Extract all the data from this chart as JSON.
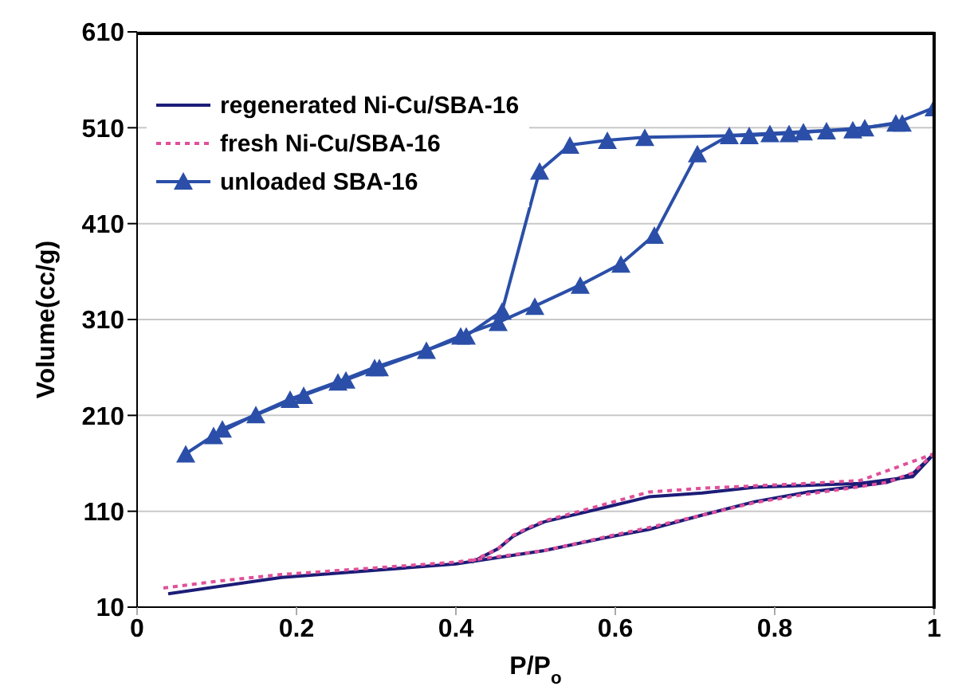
{
  "chart_data": {
    "type": "line",
    "xlabel": "P/P$_{o}$",
    "ylabel": "Volume(cc/g)",
    "xlim": [
      0,
      1
    ],
    "xticks": [
      0,
      0.2,
      0.4,
      0.6,
      0.8,
      1
    ],
    "ylim": [
      10,
      610
    ],
    "yticks": [
      10,
      110,
      210,
      310,
      410,
      510,
      610
    ],
    "grid": "y",
    "legend": "top left",
    "series": [
      {
        "name": "regenerated Ni-Cu/SBA-16",
        "color": "#1c1c78",
        "marker": "none",
        "line_style": "solid",
        "x": [
          0.039,
          0.181,
          0.4,
          0.511,
          0.597,
          0.642,
          0.709,
          0.775,
          0.841,
          0.894,
          0.94,
          0.973,
          1.0
        ],
        "values": [
          24,
          41,
          55,
          69,
          84,
          91,
          106,
          120,
          130,
          135,
          140,
          149,
          170
        ]
      },
      {
        "color": "#1c1c78",
        "marker": "none",
        "line_style": "solid",
        "x": [
          0.42,
          0.453,
          0.472,
          0.491,
          0.511,
          0.577,
          0.642,
          0.709,
          0.775,
          0.907,
          0.973,
          1.0
        ],
        "values": [
          57,
          71,
          84,
          92,
          99,
          112,
          125,
          129,
          135,
          139,
          146,
          170
        ]
      },
      {
        "name": "fresh Ni-Cu/SBA-16",
        "color": "#e0509a",
        "marker": "none",
        "line_style": "dotted",
        "x": [
          0.033,
          0.1,
          0.181,
          0.3,
          0.4,
          0.511,
          0.597,
          0.642,
          0.709,
          0.775,
          0.841,
          0.894,
          0.94,
          0.973,
          1.0
        ],
        "values": [
          30,
          37,
          44,
          51,
          57,
          69,
          85,
          93,
          106,
          119,
          128,
          134,
          140,
          150,
          170
        ]
      },
      {
        "color": "#e0509a",
        "marker": "none",
        "line_style": "dotted",
        "x": [
          0.42,
          0.453,
          0.472,
          0.491,
          0.511,
          0.577,
          0.642,
          0.709,
          0.841,
          0.907,
          1.0
        ],
        "values": [
          58,
          71,
          85,
          93,
          100,
          115,
          130,
          134,
          139,
          142,
          170
        ]
      },
      {
        "name": "unloaded SBA-16",
        "color": "#2b4fa8",
        "marker": "triangle",
        "line_style": "solid",
        "x": [
          0.061,
          0.096,
          0.149,
          0.192,
          0.252,
          0.298,
          0.363,
          0.406,
          0.453,
          0.499,
          0.556,
          0.607,
          0.649,
          0.703,
          0.743,
          0.794,
          0.836,
          0.898,
          0.952,
          1.0
        ],
        "values": [
          170,
          189,
          211,
          227,
          245,
          260,
          278,
          293,
          307,
          324,
          346,
          368,
          398,
          483,
          502,
          504,
          506,
          508,
          515,
          531
        ]
      },
      {
        "color": "#2b4fa8",
        "marker": "triangle",
        "line_style": "solid",
        "x": [
          0.107,
          0.209,
          0.262,
          0.304,
          0.413,
          0.458,
          0.505,
          0.543,
          0.59,
          0.637,
          0.768,
          0.818,
          0.865,
          0.913,
          0.96
        ],
        "values": [
          196,
          231,
          247,
          260,
          293,
          319,
          465,
          492,
          497,
          500,
          502,
          504,
          507,
          510,
          515
        ]
      }
    ]
  }
}
